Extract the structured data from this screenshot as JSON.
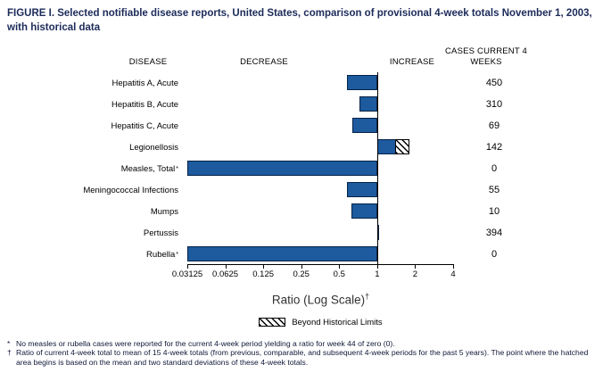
{
  "title": "FIGURE I. Selected notifiable disease reports, United States, comparison of provisional 4-week totals November 1, 2003, with historical data",
  "headers": {
    "disease": "DISEASE",
    "decrease": "DECREASE",
    "increase": "INCREASE",
    "cases": "CASES CURRENT 4 WEEKS"
  },
  "chart_data": {
    "type": "bar",
    "orientation": "horizontal",
    "x_scale": "log2",
    "xlim": [
      0.03125,
      4
    ],
    "baseline": 1,
    "x_ticks": [
      0.03125,
      0.0625,
      0.125,
      0.25,
      0.5,
      1,
      2,
      4
    ],
    "x_tick_labels": [
      "0.03125",
      "0.0625",
      "0.125",
      "0.25",
      "0.5",
      "1",
      "2",
      "4"
    ],
    "xlabel": "Ratio (Log Scale)",
    "xlabel_marker": "†",
    "rows": [
      {
        "disease": "Hepatitis A, Acute",
        "footnote_marker": "",
        "ratio": 0.58,
        "cases": "450",
        "beyond_limits": false
      },
      {
        "disease": "Hepatitis B, Acute",
        "footnote_marker": "",
        "ratio": 0.72,
        "cases": "310",
        "beyond_limits": false
      },
      {
        "disease": "Hepatitis C, Acute",
        "footnote_marker": "",
        "ratio": 0.64,
        "cases": "69",
        "beyond_limits": false
      },
      {
        "disease": "Legionellosis",
        "footnote_marker": "",
        "ratio": 1.8,
        "cases": "142",
        "beyond_limits": true,
        "hatch_start": 1.4
      },
      {
        "disease": "Measles, Total",
        "footnote_marker": "*",
        "ratio": 0.03125,
        "cases": "0",
        "beyond_limits": false
      },
      {
        "disease": "Meningococcal Infections",
        "footnote_marker": "",
        "ratio": 0.58,
        "cases": "55",
        "beyond_limits": false
      },
      {
        "disease": "Mumps",
        "footnote_marker": "",
        "ratio": 0.63,
        "cases": "10",
        "beyond_limits": false
      },
      {
        "disease": "Pertussis",
        "footnote_marker": "",
        "ratio": 1.03,
        "cases": "394",
        "beyond_limits": false
      },
      {
        "disease": "Rubella",
        "footnote_marker": "*",
        "ratio": 0.03125,
        "cases": "0",
        "beyond_limits": false
      }
    ],
    "legend": {
      "label": "Beyond Historical Limits",
      "swatch": "hatched"
    }
  },
  "colors": {
    "bar": "#1d5a9e",
    "bar_border": "#052347",
    "title_text": "#1c2b5a",
    "axis": "#000000"
  },
  "footnotes": [
    {
      "marker": "*",
      "text": "No measles or rubella cases were reported for the current 4-week period yielding a ratio for week 44 of zero (0)."
    },
    {
      "marker": "†",
      "text": "Ratio of current 4-week total to mean of 15 4-week totals (from previous, comparable, and subsequent 4-week periods for the past 5 years). The point where the hatched area begins is based on the mean and two standard deviations of these 4-week totals."
    }
  ]
}
